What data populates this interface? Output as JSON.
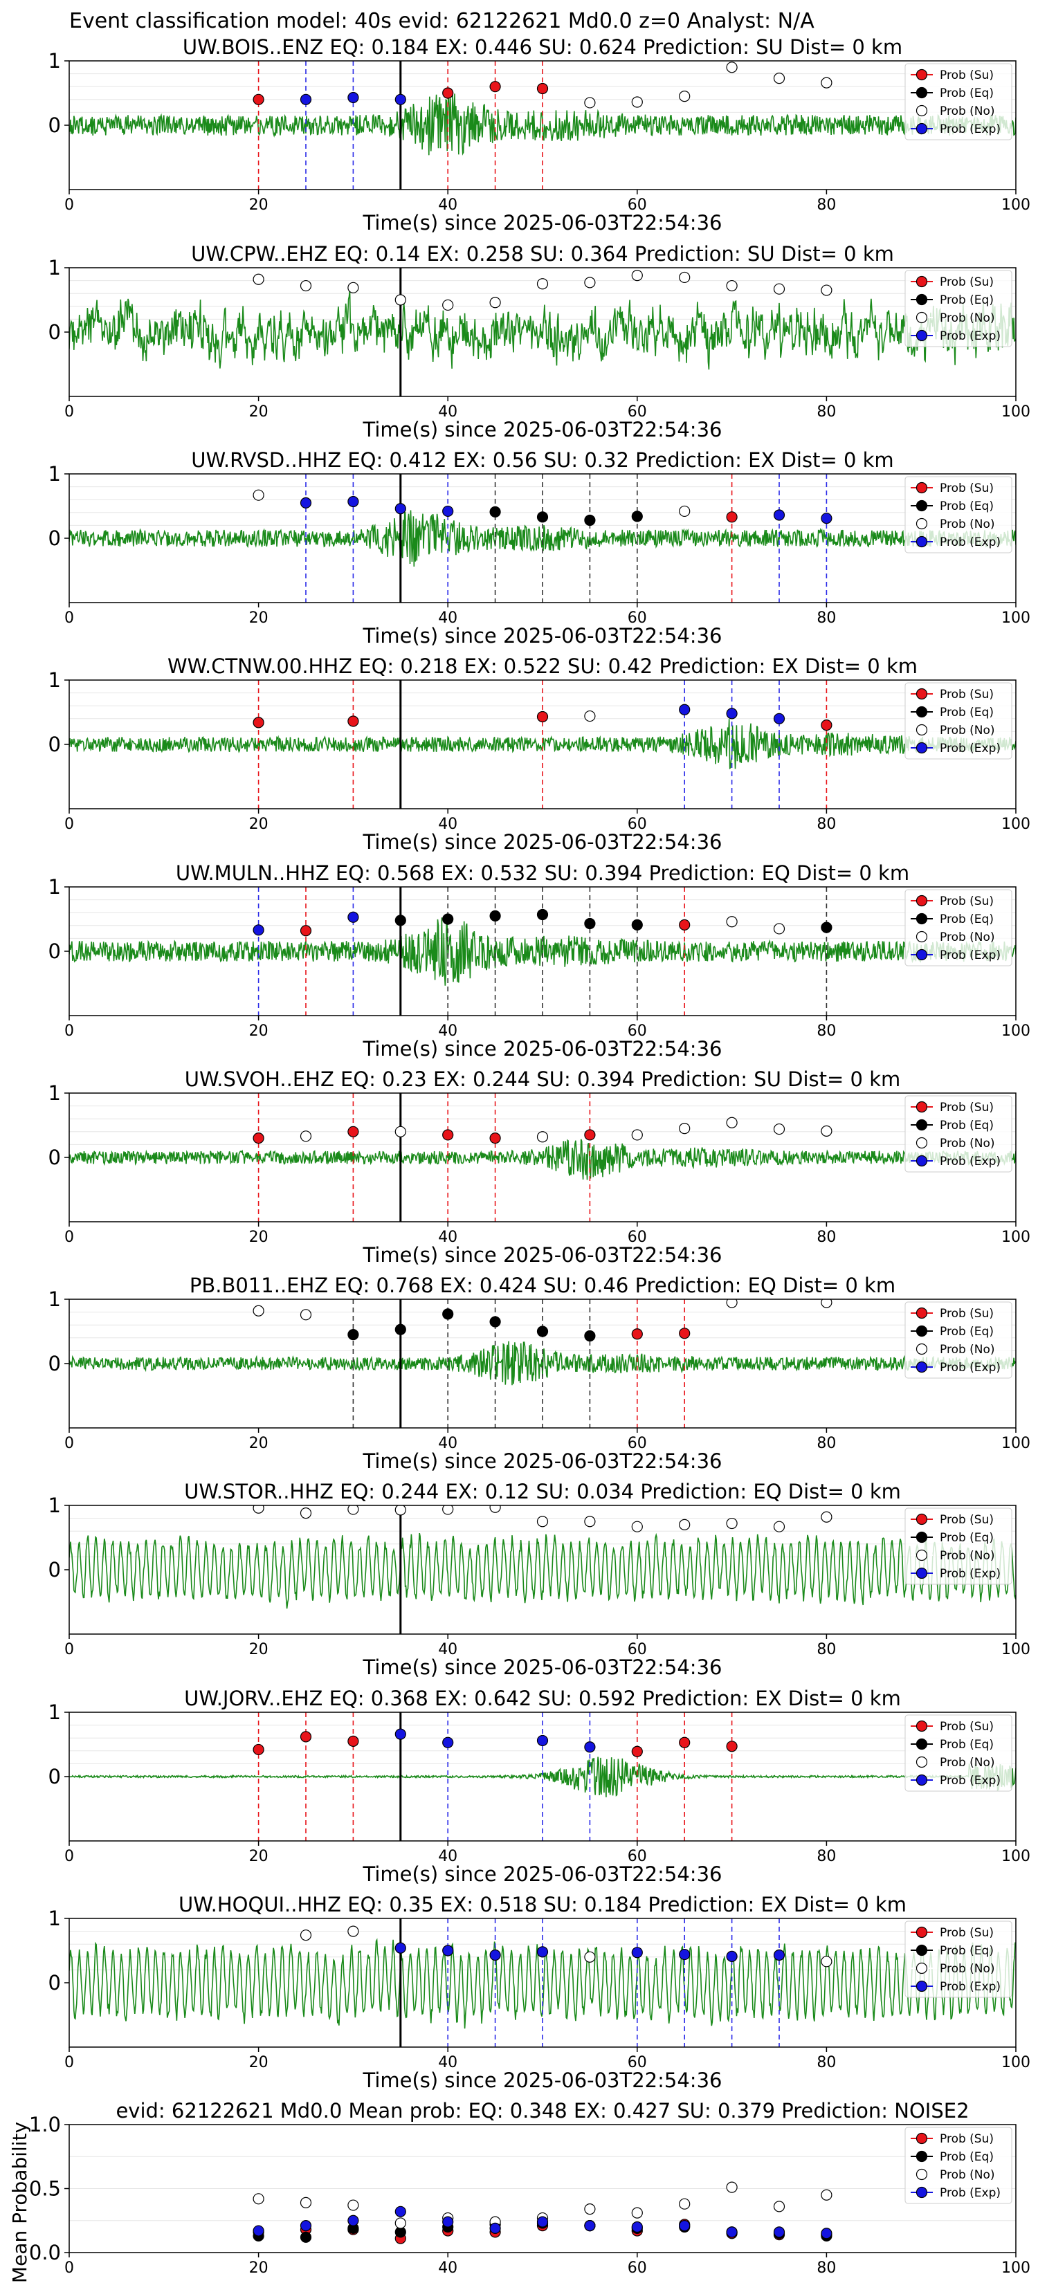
{
  "figure": {
    "suptitle": "Event classification model: 40s evid: 62122621 Md0.0 z=0 Analyst: N/A",
    "xlabel": "Time(s) since 2025-06-03T22:54:36",
    "legend_labels": [
      "Prob (Su)",
      "Prob (Eq)",
      "Prob (No)",
      "Prob (Exp)"
    ],
    "class_colors": {
      "su": "#e8141a",
      "eq": "#000000",
      "no": "#ffffff",
      "exp": "#1414e0"
    },
    "waveform_color": "#1a8a1a"
  },
  "chart_data": [
    {
      "type": "line",
      "title": "UW.BOIS..ENZ   EQ: 0.184  EX: 0.446  SU: 0.624   Prediction: SU    Dist= 0 km",
      "xlim": [
        0,
        100
      ],
      "ylim": [
        -1,
        1
      ],
      "xticks": [
        0,
        20,
        40,
        60,
        80,
        100
      ],
      "yticks": [
        1,
        0
      ],
      "arrival_time": 35,
      "waveform": {
        "amplitude": 0.55,
        "style": "burst",
        "peak_time": 40,
        "seed": 1
      },
      "probabilities": [
        {
          "t": 20,
          "cls": "su",
          "p": 0.4
        },
        {
          "t": 25,
          "cls": "exp",
          "p": 0.4
        },
        {
          "t": 30,
          "cls": "exp",
          "p": 0.43
        },
        {
          "t": 35,
          "cls": "exp",
          "p": 0.4
        },
        {
          "t": 40,
          "cls": "su",
          "p": 0.5
        },
        {
          "t": 45,
          "cls": "su",
          "p": 0.6
        },
        {
          "t": 50,
          "cls": "su",
          "p": 0.57
        },
        {
          "t": 55,
          "cls": "no",
          "p": 0.35
        },
        {
          "t": 60,
          "cls": "no",
          "p": 0.36
        },
        {
          "t": 65,
          "cls": "no",
          "p": 0.45
        },
        {
          "t": 70,
          "cls": "no",
          "p": 0.9
        },
        {
          "t": 75,
          "cls": "no",
          "p": 0.73
        },
        {
          "t": 80,
          "cls": "no",
          "p": 0.66
        }
      ]
    },
    {
      "type": "line",
      "title": "UW.CPW..EHZ   EQ: 0.14  EX: 0.258  SU: 0.364   Prediction: SU    Dist= 0 km",
      "xlim": [
        0,
        100
      ],
      "ylim": [
        -1,
        1
      ],
      "xticks": [
        0,
        20,
        40,
        60,
        80,
        100
      ],
      "yticks": [
        1,
        0
      ],
      "arrival_time": 35,
      "waveform": {
        "amplitude": 0.75,
        "style": "noisy",
        "peak_time": 60,
        "seed": 2
      },
      "probabilities": [
        {
          "t": 20,
          "cls": "no",
          "p": 0.82
        },
        {
          "t": 25,
          "cls": "no",
          "p": 0.72
        },
        {
          "t": 30,
          "cls": "no",
          "p": 0.69
        },
        {
          "t": 35,
          "cls": "no",
          "p": 0.5
        },
        {
          "t": 40,
          "cls": "no",
          "p": 0.42
        },
        {
          "t": 45,
          "cls": "no",
          "p": 0.46
        },
        {
          "t": 50,
          "cls": "no",
          "p": 0.75
        },
        {
          "t": 55,
          "cls": "no",
          "p": 0.77
        },
        {
          "t": 60,
          "cls": "no",
          "p": 0.88
        },
        {
          "t": 65,
          "cls": "no",
          "p": 0.85
        },
        {
          "t": 70,
          "cls": "no",
          "p": 0.72
        },
        {
          "t": 75,
          "cls": "no",
          "p": 0.67
        },
        {
          "t": 80,
          "cls": "no",
          "p": 0.65
        }
      ]
    },
    {
      "type": "line",
      "title": "UW.RVSD..HHZ   EQ: 0.412  EX: 0.56  SU: 0.32   Prediction: EX    Dist= 0 km",
      "xlim": [
        0,
        100
      ],
      "ylim": [
        -1,
        1
      ],
      "xticks": [
        0,
        20,
        40,
        60,
        80,
        100
      ],
      "yticks": [
        1,
        0
      ],
      "arrival_time": 35,
      "waveform": {
        "amplitude": 0.45,
        "style": "burst",
        "peak_time": 37,
        "seed": 3
      },
      "probabilities": [
        {
          "t": 20,
          "cls": "no",
          "p": 0.67
        },
        {
          "t": 25,
          "cls": "exp",
          "p": 0.55
        },
        {
          "t": 30,
          "cls": "exp",
          "p": 0.57
        },
        {
          "t": 35,
          "cls": "exp",
          "p": 0.46
        },
        {
          "t": 40,
          "cls": "exp",
          "p": 0.42
        },
        {
          "t": 45,
          "cls": "eq",
          "p": 0.41
        },
        {
          "t": 50,
          "cls": "eq",
          "p": 0.33
        },
        {
          "t": 55,
          "cls": "eq",
          "p": 0.28
        },
        {
          "t": 60,
          "cls": "eq",
          "p": 0.34
        },
        {
          "t": 65,
          "cls": "no",
          "p": 0.42
        },
        {
          "t": 70,
          "cls": "su",
          "p": 0.33
        },
        {
          "t": 75,
          "cls": "exp",
          "p": 0.36
        },
        {
          "t": 80,
          "cls": "exp",
          "p": 0.31
        }
      ]
    },
    {
      "type": "line",
      "title": "WW.CTNW.00.HHZ   EQ: 0.218  EX: 0.522  SU: 0.42   Prediction: EX    Dist= 0 km",
      "xlim": [
        0,
        100
      ],
      "ylim": [
        -1,
        1
      ],
      "xticks": [
        0,
        20,
        40,
        60,
        80,
        100
      ],
      "yticks": [
        1,
        0
      ],
      "arrival_time": 35,
      "waveform": {
        "amplitude": 0.4,
        "style": "burst",
        "peak_time": 70,
        "seed": 4
      },
      "probabilities": [
        {
          "t": 20,
          "cls": "su",
          "p": 0.34
        },
        {
          "t": 30,
          "cls": "su",
          "p": 0.36
        },
        {
          "t": 50,
          "cls": "su",
          "p": 0.43
        },
        {
          "t": 55,
          "cls": "no",
          "p": 0.44
        },
        {
          "t": 65,
          "cls": "exp",
          "p": 0.54
        },
        {
          "t": 70,
          "cls": "exp",
          "p": 0.48
        },
        {
          "t": 75,
          "cls": "exp",
          "p": 0.4
        },
        {
          "t": 80,
          "cls": "su",
          "p": 0.3
        }
      ]
    },
    {
      "type": "line",
      "title": "UW.MULN..HHZ   EQ: 0.568  EX: 0.532  SU: 0.394   Prediction: EQ    Dist= 0 km",
      "xlim": [
        0,
        100
      ],
      "ylim": [
        -1,
        1
      ],
      "xticks": [
        0,
        20,
        40,
        60,
        80,
        100
      ],
      "yticks": [
        1,
        0
      ],
      "arrival_time": 35,
      "waveform": {
        "amplitude": 0.55,
        "style": "burst",
        "peak_time": 40,
        "seed": 5
      },
      "probabilities": [
        {
          "t": 20,
          "cls": "exp",
          "p": 0.33
        },
        {
          "t": 25,
          "cls": "su",
          "p": 0.32
        },
        {
          "t": 30,
          "cls": "exp",
          "p": 0.53
        },
        {
          "t": 35,
          "cls": "eq",
          "p": 0.48
        },
        {
          "t": 40,
          "cls": "eq",
          "p": 0.5
        },
        {
          "t": 45,
          "cls": "eq",
          "p": 0.55
        },
        {
          "t": 50,
          "cls": "eq",
          "p": 0.57
        },
        {
          "t": 55,
          "cls": "eq",
          "p": 0.43
        },
        {
          "t": 60,
          "cls": "eq",
          "p": 0.41
        },
        {
          "t": 65,
          "cls": "su",
          "p": 0.41
        },
        {
          "t": 70,
          "cls": "no",
          "p": 0.46
        },
        {
          "t": 75,
          "cls": "no",
          "p": 0.35
        },
        {
          "t": 80,
          "cls": "eq",
          "p": 0.37
        }
      ]
    },
    {
      "type": "line",
      "title": "UW.SVOH..EHZ   EQ: 0.23  EX: 0.244  SU: 0.394   Prediction: SU    Dist= 0 km",
      "xlim": [
        0,
        100
      ],
      "ylim": [
        -1,
        1
      ],
      "xticks": [
        0,
        20,
        40,
        60,
        80,
        100
      ],
      "yticks": [
        1,
        0
      ],
      "arrival_time": 35,
      "waveform": {
        "amplitude": 0.35,
        "style": "burst",
        "peak_time": 55,
        "seed": 6
      },
      "probabilities": [
        {
          "t": 20,
          "cls": "su",
          "p": 0.3
        },
        {
          "t": 25,
          "cls": "no",
          "p": 0.33
        },
        {
          "t": 30,
          "cls": "su",
          "p": 0.4
        },
        {
          "t": 35,
          "cls": "no",
          "p": 0.4
        },
        {
          "t": 40,
          "cls": "su",
          "p": 0.35
        },
        {
          "t": 45,
          "cls": "su",
          "p": 0.3
        },
        {
          "t": 50,
          "cls": "no",
          "p": 0.32
        },
        {
          "t": 55,
          "cls": "su",
          "p": 0.35
        },
        {
          "t": 60,
          "cls": "no",
          "p": 0.35
        },
        {
          "t": 65,
          "cls": "no",
          "p": 0.45
        },
        {
          "t": 70,
          "cls": "no",
          "p": 0.54
        },
        {
          "t": 75,
          "cls": "no",
          "p": 0.44
        },
        {
          "t": 80,
          "cls": "no",
          "p": 0.41
        }
      ]
    },
    {
      "type": "line",
      "title": "PB.B011..EHZ   EQ: 0.768  EX: 0.424  SU: 0.46   Prediction: EQ    Dist= 0 km",
      "xlim": [
        0,
        100
      ],
      "ylim": [
        -1,
        1
      ],
      "xticks": [
        0,
        20,
        40,
        60,
        80,
        100
      ],
      "yticks": [
        1,
        0
      ],
      "arrival_time": 35,
      "waveform": {
        "amplitude": 0.35,
        "style": "burst",
        "peak_time": 47,
        "seed": 7
      },
      "probabilities": [
        {
          "t": 20,
          "cls": "no",
          "p": 0.82
        },
        {
          "t": 25,
          "cls": "no",
          "p": 0.76
        },
        {
          "t": 30,
          "cls": "eq",
          "p": 0.45
        },
        {
          "t": 35,
          "cls": "eq",
          "p": 0.53
        },
        {
          "t": 40,
          "cls": "eq",
          "p": 0.77
        },
        {
          "t": 45,
          "cls": "eq",
          "p": 0.65
        },
        {
          "t": 50,
          "cls": "eq",
          "p": 0.5
        },
        {
          "t": 55,
          "cls": "eq",
          "p": 0.43
        },
        {
          "t": 60,
          "cls": "su",
          "p": 0.46
        },
        {
          "t": 65,
          "cls": "su",
          "p": 0.47
        },
        {
          "t": 70,
          "cls": "no",
          "p": 0.95
        },
        {
          "t": 80,
          "cls": "no",
          "p": 0.95
        }
      ]
    },
    {
      "type": "line",
      "title": "UW.STOR..HHZ   EQ: 0.244  EX: 0.12  SU: 0.034   Prediction: EQ    Dist= 0 km",
      "xlim": [
        0,
        100
      ],
      "ylim": [
        -1,
        1
      ],
      "xticks": [
        0,
        20,
        40,
        60,
        80,
        100
      ],
      "yticks": [
        1,
        0
      ],
      "arrival_time": 35,
      "waveform": {
        "amplitude": 0.6,
        "style": "wave",
        "peak_time": 55,
        "seed": 8
      },
      "probabilities": [
        {
          "t": 20,
          "cls": "no",
          "p": 0.96
        },
        {
          "t": 25,
          "cls": "no",
          "p": 0.88
        },
        {
          "t": 30,
          "cls": "no",
          "p": 0.94
        },
        {
          "t": 35,
          "cls": "no",
          "p": 0.93
        },
        {
          "t": 40,
          "cls": "no",
          "p": 0.94
        },
        {
          "t": 45,
          "cls": "no",
          "p": 0.97
        },
        {
          "t": 50,
          "cls": "no",
          "p": 0.75
        },
        {
          "t": 55,
          "cls": "no",
          "p": 0.75
        },
        {
          "t": 60,
          "cls": "no",
          "p": 0.67
        },
        {
          "t": 65,
          "cls": "no",
          "p": 0.7
        },
        {
          "t": 70,
          "cls": "no",
          "p": 0.72
        },
        {
          "t": 75,
          "cls": "no",
          "p": 0.67
        },
        {
          "t": 80,
          "cls": "no",
          "p": 0.82
        }
      ]
    },
    {
      "type": "line",
      "title": "UW.JORV..EHZ   EQ: 0.368  EX: 0.642  SU: 0.592   Prediction: EX    Dist= 0 km",
      "xlim": [
        0,
        100
      ],
      "ylim": [
        -1,
        1
      ],
      "xticks": [
        0,
        20,
        40,
        60,
        80,
        100
      ],
      "yticks": [
        1,
        0
      ],
      "arrival_time": 35,
      "waveform": {
        "amplitude": 0.06,
        "style": "event",
        "peak_time": 57,
        "seed": 9
      },
      "probabilities": [
        {
          "t": 20,
          "cls": "su",
          "p": 0.42
        },
        {
          "t": 25,
          "cls": "su",
          "p": 0.62
        },
        {
          "t": 30,
          "cls": "su",
          "p": 0.55
        },
        {
          "t": 35,
          "cls": "exp",
          "p": 0.66
        },
        {
          "t": 40,
          "cls": "exp",
          "p": 0.53
        },
        {
          "t": 50,
          "cls": "exp",
          "p": 0.56
        },
        {
          "t": 55,
          "cls": "exp",
          "p": 0.46
        },
        {
          "t": 60,
          "cls": "su",
          "p": 0.39
        },
        {
          "t": 65,
          "cls": "su",
          "p": 0.53
        },
        {
          "t": 70,
          "cls": "su",
          "p": 0.47
        }
      ]
    },
    {
      "type": "line",
      "title": "UW.HOQUI..HHZ   EQ: 0.35  EX: 0.518  SU: 0.184   Prediction: EX    Dist= 0 km",
      "xlim": [
        0,
        100
      ],
      "ylim": [
        -1,
        1
      ],
      "xticks": [
        0,
        20,
        40,
        60,
        80,
        100
      ],
      "yticks": [
        1,
        0
      ],
      "arrival_time": 35,
      "waveform": {
        "amplitude": 0.7,
        "style": "wave",
        "peak_time": 70,
        "seed": 10
      },
      "probabilities": [
        {
          "t": 25,
          "cls": "no",
          "p": 0.74
        },
        {
          "t": 30,
          "cls": "no",
          "p": 0.8
        },
        {
          "t": 35,
          "cls": "exp",
          "p": 0.54
        },
        {
          "t": 40,
          "cls": "exp",
          "p": 0.5
        },
        {
          "t": 45,
          "cls": "exp",
          "p": 0.43
        },
        {
          "t": 50,
          "cls": "exp",
          "p": 0.48
        },
        {
          "t": 55,
          "cls": "no",
          "p": 0.4
        },
        {
          "t": 60,
          "cls": "exp",
          "p": 0.47
        },
        {
          "t": 65,
          "cls": "exp",
          "p": 0.44
        },
        {
          "t": 70,
          "cls": "exp",
          "p": 0.41
        },
        {
          "t": 75,
          "cls": "exp",
          "p": 0.43
        },
        {
          "t": 80,
          "cls": "no",
          "p": 0.33
        }
      ]
    },
    {
      "type": "scatter",
      "title": "evid: 62122621  Md0.0   Mean prob:   EQ: 0.348  EX: 0.427  SU: 0.379   Prediction: NOISE2",
      "ylabel": "Mean Probability",
      "xlim": [
        0,
        100
      ],
      "ylim": [
        0,
        1
      ],
      "xticks": [
        0,
        20,
        40,
        60,
        80,
        100
      ],
      "yticks": [
        0.0,
        0.5,
        1.0
      ],
      "grid": true,
      "series": [
        {
          "cls": "su",
          "x": [
            20,
            25,
            30,
            35,
            40,
            45,
            50,
            55,
            60,
            65,
            70,
            75,
            80
          ],
          "y": [
            0.16,
            0.18,
            0.18,
            0.11,
            0.17,
            0.16,
            0.21,
            0.21,
            0.17,
            0.22,
            0.15,
            0.14,
            0.14
          ]
        },
        {
          "cls": "eq",
          "x": [
            20,
            25,
            30,
            35,
            40,
            45,
            50,
            55,
            60,
            65,
            70,
            75,
            80
          ],
          "y": [
            0.13,
            0.12,
            0.19,
            0.16,
            0.2,
            0.22,
            0.23,
            0.21,
            0.19,
            0.2,
            0.16,
            0.15,
            0.13
          ]
        },
        {
          "cls": "no",
          "x": [
            20,
            25,
            30,
            35,
            40,
            45,
            50,
            55,
            60,
            65,
            70,
            75,
            80
          ],
          "y": [
            0.42,
            0.39,
            0.37,
            0.23,
            0.27,
            0.24,
            0.27,
            0.34,
            0.31,
            0.38,
            0.51,
            0.36,
            0.45
          ]
        },
        {
          "cls": "exp",
          "x": [
            20,
            25,
            30,
            35,
            40,
            45,
            50,
            55,
            60,
            65,
            70,
            75,
            80
          ],
          "y": [
            0.17,
            0.21,
            0.25,
            0.32,
            0.24,
            0.19,
            0.24,
            0.21,
            0.2,
            0.21,
            0.16,
            0.16,
            0.15
          ]
        }
      ]
    }
  ]
}
